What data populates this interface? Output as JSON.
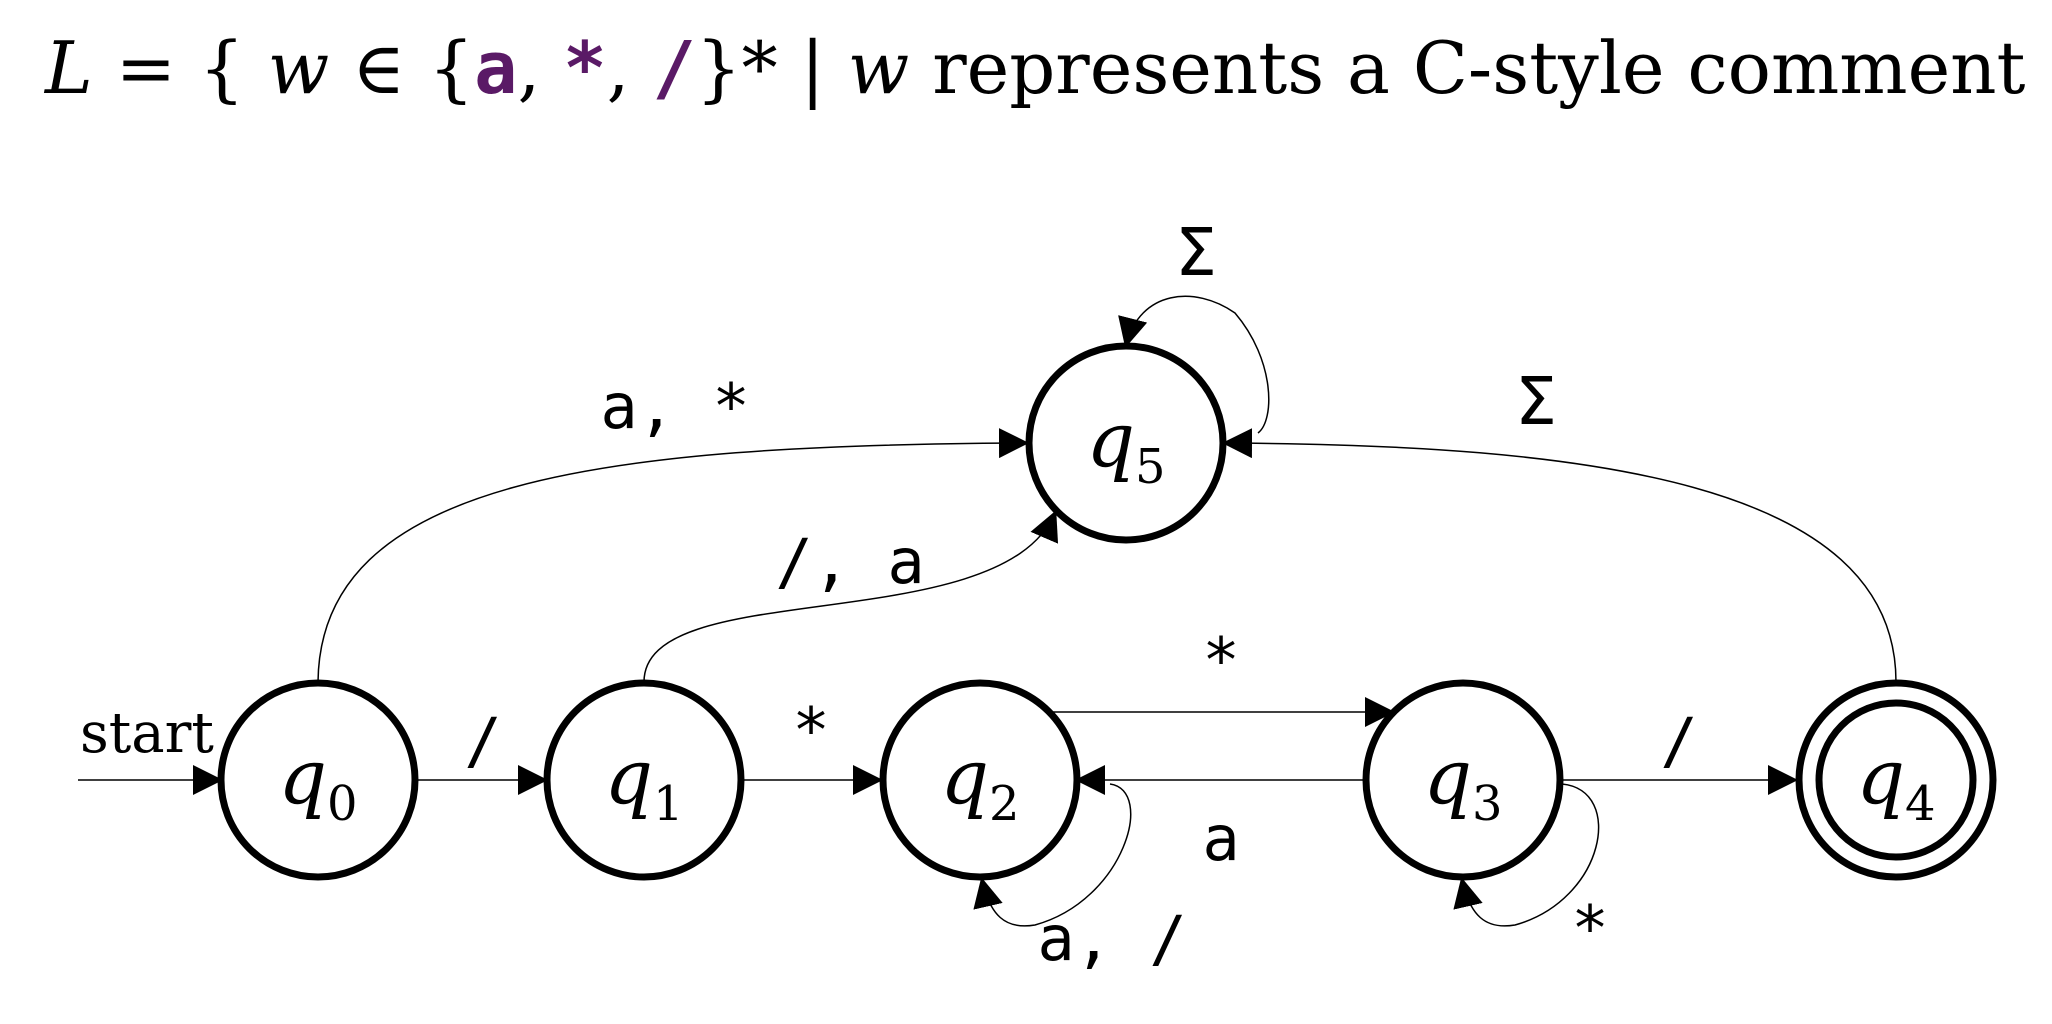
{
  "header": {
    "set_name": "L",
    "equals": "=",
    "open_brace": "{",
    "var": "w",
    "member_of": "∈",
    "alpha_open": "{",
    "alphabet": [
      "a",
      "*",
      "/"
    ],
    "comma": ",",
    "alpha_close": "}*",
    "bar": "|",
    "var2": "w",
    "description": "represents a C-style comment",
    "close_brace": "}",
    "alphabet_color": "#5a1a66"
  },
  "diagram": {
    "start_label": "start",
    "states": [
      {
        "id": "q0",
        "name": "q",
        "sub": "0",
        "accepting": false
      },
      {
        "id": "q1",
        "name": "q",
        "sub": "1",
        "accepting": false
      },
      {
        "id": "q2",
        "name": "q",
        "sub": "2",
        "accepting": false
      },
      {
        "id": "q3",
        "name": "q",
        "sub": "3",
        "accepting": false
      },
      {
        "id": "q4",
        "name": "q",
        "sub": "4",
        "accepting": true
      },
      {
        "id": "q5",
        "name": "q",
        "sub": "5",
        "accepting": false
      }
    ],
    "transitions": [
      {
        "from": "q0",
        "to": "q1",
        "label": "/"
      },
      {
        "from": "q0",
        "to": "q5",
        "label": "a, *"
      },
      {
        "from": "q1",
        "to": "q2",
        "label": "*"
      },
      {
        "from": "q1",
        "to": "q5",
        "label": "/, a"
      },
      {
        "from": "q2",
        "to": "q3",
        "label": "*"
      },
      {
        "from": "q2",
        "to": "q2",
        "label": "a, /"
      },
      {
        "from": "q3",
        "to": "q2",
        "label": "a"
      },
      {
        "from": "q3",
        "to": "q3",
        "label": "*"
      },
      {
        "from": "q3",
        "to": "q4",
        "label": "/"
      },
      {
        "from": "q4",
        "to": "q5",
        "label": "Σ"
      },
      {
        "from": "q5",
        "to": "q5",
        "label": "Σ"
      }
    ]
  }
}
